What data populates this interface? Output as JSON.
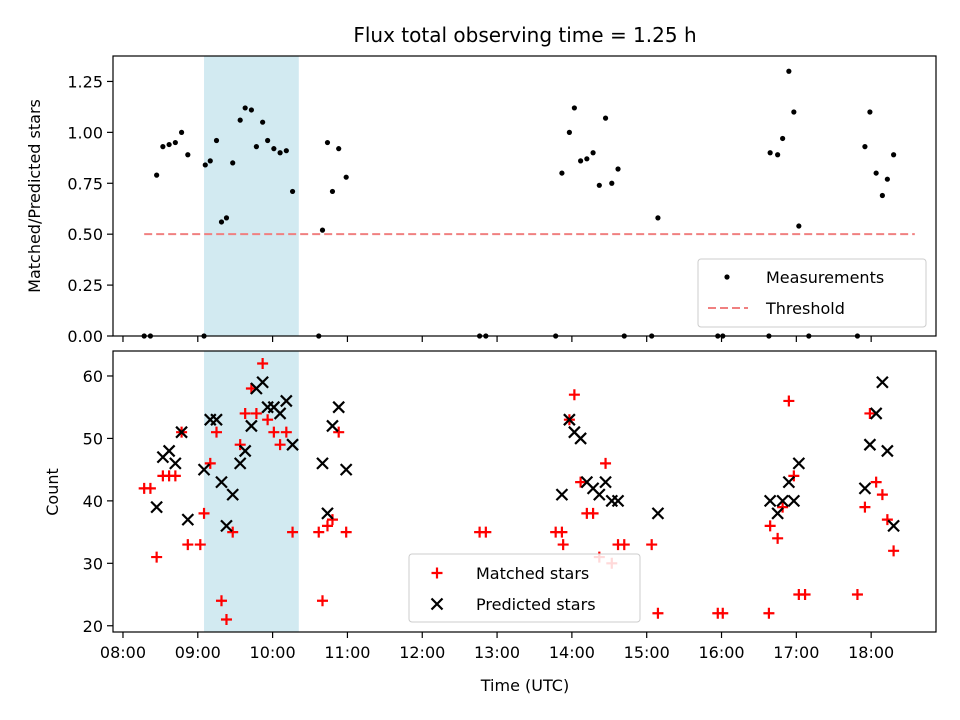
{
  "chart_data": [
    {
      "type": "scatter",
      "title": "Flux total observing time = 1.25 h",
      "xlabel": "",
      "ylabel": "Matched/Predicted stars",
      "ylim": [
        0.0,
        1.375
      ],
      "yticks": [
        0.0,
        0.25,
        0.5,
        0.75,
        1.0,
        1.25
      ],
      "ytick_labels": [
        "0.00",
        "0.25",
        "0.50",
        "0.75",
        "1.00",
        "1.25"
      ],
      "xlim": [
        "07:52",
        "18:52"
      ],
      "shaded_region": {
        "start": "09:05",
        "end": "10:21",
        "color": "#add8e6"
      },
      "threshold": {
        "value": 0.5,
        "from": "08:17",
        "to": "18:35",
        "color": "#f08080"
      },
      "legend": {
        "position": "lower-right",
        "entries": [
          "Measurements",
          "Threshold"
        ]
      },
      "series": [
        {
          "name": "Measurements",
          "marker": "dot",
          "color": "#000000",
          "points": [
            [
              "08:17",
              0.0
            ],
            [
              "08:22",
              0.0
            ],
            [
              "08:27",
              0.79
            ],
            [
              "08:32",
              0.93
            ],
            [
              "08:37",
              0.94
            ],
            [
              "08:42",
              0.95
            ],
            [
              "08:47",
              1.0
            ],
            [
              "08:52",
              0.89
            ],
            [
              "09:05",
              0.0
            ],
            [
              "09:06",
              0.84
            ],
            [
              "09:10",
              0.86
            ],
            [
              "09:15",
              0.96
            ],
            [
              "09:19",
              0.56
            ],
            [
              "09:23",
              0.58
            ],
            [
              "09:28",
              0.85
            ],
            [
              "09:34",
              1.06
            ],
            [
              "09:38",
              1.12
            ],
            [
              "09:43",
              1.11
            ],
            [
              "09:47",
              0.93
            ],
            [
              "09:52",
              1.05
            ],
            [
              "09:56",
              0.96
            ],
            [
              "10:01",
              0.92
            ],
            [
              "10:06",
              0.9
            ],
            [
              "10:11",
              0.91
            ],
            [
              "10:16",
              0.71
            ],
            [
              "10:37",
              0.0
            ],
            [
              "10:40",
              0.52
            ],
            [
              "10:44",
              0.95
            ],
            [
              "10:48",
              0.71
            ],
            [
              "10:53",
              0.92
            ],
            [
              "10:59",
              0.78
            ],
            [
              "12:46",
              0.0
            ],
            [
              "12:51",
              0.0
            ],
            [
              "13:47",
              0.0
            ],
            [
              "13:52",
              0.8
            ],
            [
              "13:58",
              1.0
            ],
            [
              "14:02",
              1.12
            ],
            [
              "14:07",
              0.86
            ],
            [
              "14:12",
              0.87
            ],
            [
              "14:17",
              0.9
            ],
            [
              "14:22",
              0.74
            ],
            [
              "14:27",
              1.07
            ],
            [
              "14:32",
              0.75
            ],
            [
              "14:37",
              0.82
            ],
            [
              "14:42",
              0.0
            ],
            [
              "15:04",
              0.0
            ],
            [
              "15:09",
              0.58
            ],
            [
              "15:57",
              0.0
            ],
            [
              "16:01",
              0.0
            ],
            [
              "16:38",
              0.0
            ],
            [
              "16:39",
              0.9
            ],
            [
              "16:45",
              0.89
            ],
            [
              "16:49",
              0.97
            ],
            [
              "16:54",
              1.3
            ],
            [
              "16:58",
              1.1
            ],
            [
              "17:02",
              0.54
            ],
            [
              "17:10",
              0.0
            ],
            [
              "17:49",
              0.0
            ],
            [
              "17:55",
              0.93
            ],
            [
              "17:59",
              1.1
            ],
            [
              "18:04",
              0.8
            ],
            [
              "18:09",
              0.69
            ],
            [
              "18:13",
              0.77
            ],
            [
              "18:18",
              0.89
            ]
          ]
        }
      ]
    },
    {
      "type": "scatter",
      "title": "",
      "xlabel": "Time (UTC)",
      "ylabel": "Count",
      "ylim": [
        19,
        64
      ],
      "yticks": [
        20,
        30,
        40,
        50,
        60
      ],
      "xticks": [
        "08:00",
        "09:00",
        "10:00",
        "11:00",
        "12:00",
        "13:00",
        "14:00",
        "15:00",
        "16:00",
        "17:00",
        "18:00"
      ],
      "xlim": [
        "07:52",
        "18:52"
      ],
      "shaded_region": {
        "start": "09:05",
        "end": "10:21",
        "color": "#add8e6"
      },
      "legend": {
        "position": "lower-center",
        "entries": [
          "Matched stars",
          "Predicted stars"
        ]
      },
      "series": [
        {
          "name": "Matched stars",
          "marker": "plus",
          "color": "#ff0000",
          "points": [
            [
              "08:17",
              42
            ],
            [
              "08:22",
              42
            ],
            [
              "08:27",
              31
            ],
            [
              "08:32",
              44
            ],
            [
              "08:37",
              44
            ],
            [
              "08:42",
              44
            ],
            [
              "08:47",
              51
            ],
            [
              "08:52",
              33
            ],
            [
              "09:02",
              33
            ],
            [
              "09:05",
              38
            ],
            [
              "09:10",
              46
            ],
            [
              "09:15",
              51
            ],
            [
              "09:19",
              24
            ],
            [
              "09:23",
              21
            ],
            [
              "09:28",
              35
            ],
            [
              "09:34",
              49
            ],
            [
              "09:38",
              54
            ],
            [
              "09:43",
              58
            ],
            [
              "09:47",
              54
            ],
            [
              "09:52",
              62
            ],
            [
              "09:56",
              53
            ],
            [
              "10:01",
              51
            ],
            [
              "10:06",
              49
            ],
            [
              "10:11",
              51
            ],
            [
              "10:16",
              35
            ],
            [
              "10:37",
              35
            ],
            [
              "10:40",
              24
            ],
            [
              "10:44",
              36
            ],
            [
              "10:48",
              37
            ],
            [
              "10:53",
              51
            ],
            [
              "10:59",
              35
            ],
            [
              "12:46",
              35
            ],
            [
              "12:51",
              35
            ],
            [
              "13:47",
              35
            ],
            [
              "13:52",
              35
            ],
            [
              "13:53",
              33
            ],
            [
              "13:58",
              53
            ],
            [
              "14:02",
              57
            ],
            [
              "14:07",
              43
            ],
            [
              "14:12",
              38
            ],
            [
              "14:17",
              38
            ],
            [
              "14:22",
              31
            ],
            [
              "14:27",
              46
            ],
            [
              "14:32",
              30
            ],
            [
              "14:37",
              33
            ],
            [
              "14:42",
              33
            ],
            [
              "15:04",
              33
            ],
            [
              "15:09",
              22
            ],
            [
              "15:57",
              22
            ],
            [
              "16:01",
              22
            ],
            [
              "16:38",
              22
            ],
            [
              "16:39",
              36
            ],
            [
              "16:45",
              34
            ],
            [
              "16:49",
              39
            ],
            [
              "16:54",
              56
            ],
            [
              "16:58",
              44
            ],
            [
              "17:02",
              25
            ],
            [
              "17:07",
              25
            ],
            [
              "17:49",
              25
            ],
            [
              "17:55",
              39
            ],
            [
              "17:59",
              54
            ],
            [
              "18:04",
              43
            ],
            [
              "18:09",
              41
            ],
            [
              "18:13",
              37
            ],
            [
              "18:18",
              32
            ]
          ]
        },
        {
          "name": "Predicted stars",
          "marker": "x",
          "color": "#000000",
          "points": [
            [
              "08:27",
              39
            ],
            [
              "08:32",
              47
            ],
            [
              "08:37",
              48
            ],
            [
              "08:42",
              46
            ],
            [
              "08:47",
              51
            ],
            [
              "08:52",
              37
            ],
            [
              "09:05",
              45
            ],
            [
              "09:10",
              53
            ],
            [
              "09:15",
              53
            ],
            [
              "09:19",
              43
            ],
            [
              "09:23",
              36
            ],
            [
              "09:28",
              41
            ],
            [
              "09:34",
              46
            ],
            [
              "09:38",
              48
            ],
            [
              "09:43",
              52
            ],
            [
              "09:47",
              58
            ],
            [
              "09:52",
              59
            ],
            [
              "09:56",
              55
            ],
            [
              "10:01",
              55
            ],
            [
              "10:06",
              54
            ],
            [
              "10:11",
              56
            ],
            [
              "10:16",
              49
            ],
            [
              "10:40",
              46
            ],
            [
              "10:44",
              38
            ],
            [
              "10:48",
              52
            ],
            [
              "10:53",
              55
            ],
            [
              "10:59",
              45
            ],
            [
              "13:52",
              41
            ],
            [
              "13:58",
              53
            ],
            [
              "14:02",
              51
            ],
            [
              "14:07",
              50
            ],
            [
              "14:12",
              43
            ],
            [
              "14:17",
              42
            ],
            [
              "14:22",
              41
            ],
            [
              "14:27",
              43
            ],
            [
              "14:32",
              40
            ],
            [
              "14:37",
              40
            ],
            [
              "15:09",
              38
            ],
            [
              "16:39",
              40
            ],
            [
              "16:45",
              38
            ],
            [
              "16:49",
              40
            ],
            [
              "16:54",
              43
            ],
            [
              "16:58",
              40
            ],
            [
              "17:02",
              46
            ],
            [
              "17:55",
              42
            ],
            [
              "17:59",
              49
            ],
            [
              "18:04",
              54
            ],
            [
              "18:09",
              59
            ],
            [
              "18:13",
              48
            ],
            [
              "18:18",
              36
            ]
          ]
        }
      ]
    }
  ]
}
